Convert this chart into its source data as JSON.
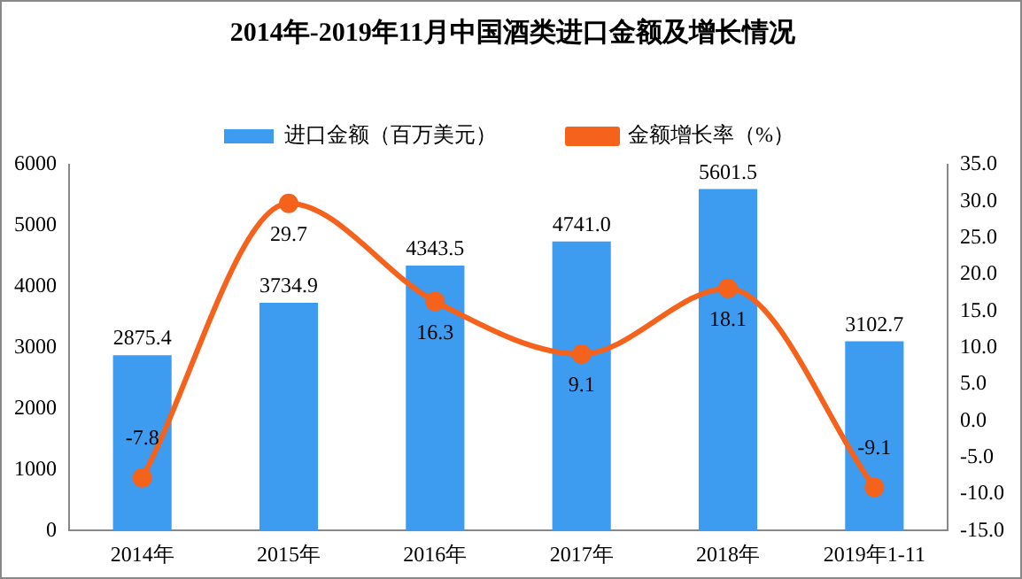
{
  "chart_data": {
    "type": "bar",
    "title": "2014年-2019年11月中国酒类进口金额及增长情况",
    "categories": [
      "2014年",
      "2015年",
      "2016年",
      "2017年",
      "2018年",
      "2019年1-11"
    ],
    "series": [
      {
        "name": "进口金额（百万美元）",
        "color": "#3d9bf0",
        "values": [
          2875.4,
          3734.9,
          4343.5,
          4741.0,
          5601.5,
          3102.7
        ],
        "value_labels": [
          "2875.4",
          "3734.9",
          "4343.5",
          "4741.0",
          "5601.5",
          "3102.7"
        ]
      },
      {
        "name": "金额增长率（%）",
        "type": "line",
        "axis": "y2",
        "color": "#f5621b",
        "values": [
          -7.8,
          29.7,
          16.3,
          9.1,
          18.1,
          -9.1
        ],
        "value_labels": [
          "-7.8",
          "29.7",
          "16.3",
          "9.1",
          "18.1",
          "-9.1"
        ]
      }
    ],
    "ylim": [
      0,
      6000
    ],
    "yticks": [
      0,
      1000,
      2000,
      3000,
      4000,
      5000,
      6000
    ],
    "y2lim": [
      -15,
      35
    ],
    "y2ticks": [
      {
        "value": -15,
        "label": "-15.0"
      },
      {
        "value": -10,
        "label": "-10.0"
      },
      {
        "value": -5,
        "label": "-5.0"
      },
      {
        "value": 0,
        "label": "0.0"
      },
      {
        "value": 5,
        "label": "5.0"
      },
      {
        "value": 10,
        "label": "10.0"
      },
      {
        "value": 15,
        "label": "15.0"
      },
      {
        "value": 20,
        "label": "20.0"
      },
      {
        "value": 25,
        "label": "25.0"
      },
      {
        "value": 30,
        "label": "30.0"
      },
      {
        "value": 35,
        "label": "35.0"
      }
    ],
    "grid": false,
    "legend": "top",
    "marker": "circle",
    "line_style": "solid"
  }
}
